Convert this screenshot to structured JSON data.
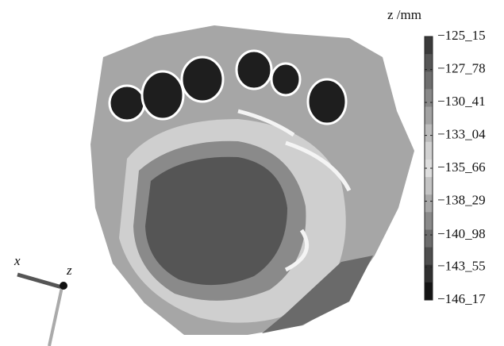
{
  "chart_data": {
    "type": "heatmap",
    "colorbar_label": "z /mm",
    "clim": [
      -146.17,
      -125.15
    ],
    "cticks": [
      {
        "value": -125.15,
        "label": "−125_15"
      },
      {
        "value": -127.78,
        "label": "−127_78"
      },
      {
        "value": -130.41,
        "label": "−130_41"
      },
      {
        "value": -133.04,
        "label": "−133_04"
      },
      {
        "value": -135.66,
        "label": "−135_66"
      },
      {
        "value": -138.29,
        "label": "−138_29"
      },
      {
        "value": -140.98,
        "label": "−140_98"
      },
      {
        "value": -143.55,
        "label": "−143_55"
      },
      {
        "value": -146.17,
        "label": "−146_17"
      }
    ],
    "colormap": [
      "#3a3a3a",
      "#555555",
      "#6e6e6e",
      "#888888",
      "#a2a2a2",
      "#bcbcbc",
      "#d2d2d2",
      "#dedede",
      "#c4c4c4",
      "#a8a8a8",
      "#8a8a8a",
      "#6c6c6c",
      "#4e4e4e",
      "#303030",
      "#141414"
    ],
    "axis_labels": {
      "x": "x",
      "z": "z"
    }
  }
}
